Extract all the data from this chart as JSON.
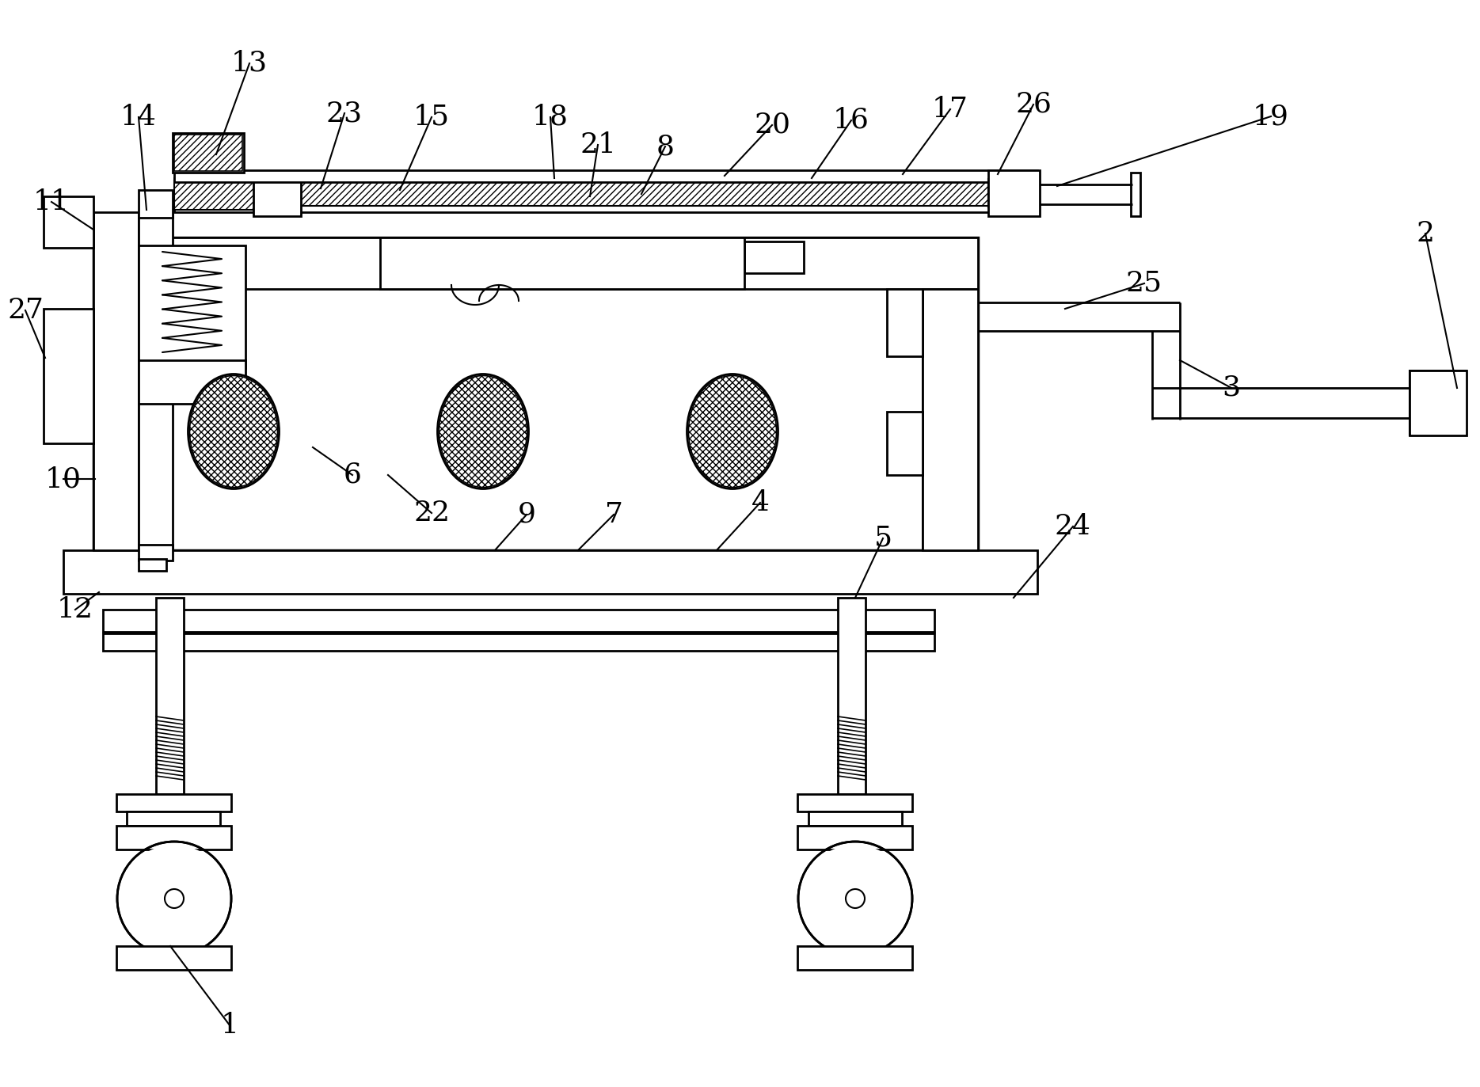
{
  "background_color": "#ffffff",
  "line_color": "#000000",
  "label_fontsize": 26,
  "labels_info": [
    [
      "1",
      290,
      1295,
      215,
      1195
    ],
    [
      "2",
      1800,
      295,
      1840,
      490
    ],
    [
      "3",
      1555,
      490,
      1490,
      455
    ],
    [
      "4",
      960,
      635,
      905,
      695
    ],
    [
      "5",
      1115,
      680,
      1080,
      755
    ],
    [
      "6",
      445,
      600,
      395,
      565
    ],
    [
      "7",
      775,
      650,
      730,
      695
    ],
    [
      "8",
      840,
      185,
      810,
      245
    ],
    [
      "9",
      665,
      650,
      625,
      695
    ],
    [
      "10",
      80,
      605,
      120,
      605
    ],
    [
      "11",
      65,
      255,
      118,
      290
    ],
    [
      "12",
      95,
      770,
      125,
      748
    ],
    [
      "13",
      315,
      80,
      273,
      195
    ],
    [
      "14",
      175,
      148,
      185,
      265
    ],
    [
      "15",
      545,
      148,
      505,
      240
    ],
    [
      "16",
      1075,
      152,
      1025,
      225
    ],
    [
      "17",
      1200,
      138,
      1140,
      220
    ],
    [
      "18",
      695,
      148,
      700,
      225
    ],
    [
      "19",
      1605,
      147,
      1335,
      235
    ],
    [
      "20",
      975,
      158,
      915,
      222
    ],
    [
      "21",
      755,
      183,
      745,
      248
    ],
    [
      "22",
      545,
      648,
      490,
      600
    ],
    [
      "23",
      435,
      143,
      405,
      238
    ],
    [
      "24",
      1355,
      665,
      1280,
      755
    ],
    [
      "25",
      1445,
      358,
      1345,
      390
    ],
    [
      "26",
      1305,
      132,
      1260,
      220
    ],
    [
      "27",
      32,
      392,
      57,
      452
    ]
  ]
}
